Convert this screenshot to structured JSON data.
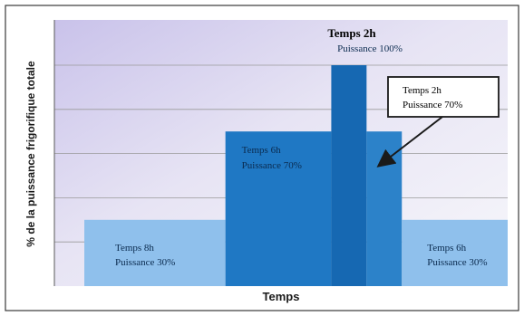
{
  "chart_data": {
    "type": "bar",
    "xlabel": "Temps",
    "ylabel": "% de la puissance frigorifique totale",
    "ylim": [
      0,
      100
    ],
    "grid": true,
    "segments": [
      {
        "duration_h": 8,
        "power_pct": 30,
        "label_time": "Temps 8h",
        "label_power": "Puissance 30%",
        "color": "#8fc0ec"
      },
      {
        "duration_h": 6,
        "power_pct": 70,
        "label_time": "Temps 6h",
        "label_power": "Puissance 70%",
        "color": "#1f78c4"
      },
      {
        "duration_h": 2,
        "power_pct": 100,
        "label_time": "Temps 2h",
        "label_power": "Puissance 100%",
        "color": "#1668b2"
      },
      {
        "duration_h": 2,
        "power_pct": 70,
        "label_time": "Temps 2h",
        "label_power": "Puissance 70%",
        "color": "#2c82c9"
      },
      {
        "duration_h": 6,
        "power_pct": 30,
        "label_time": "Temps 6h",
        "label_power": "Puissance 30%",
        "color": "#8fc0ec"
      }
    ]
  }
}
